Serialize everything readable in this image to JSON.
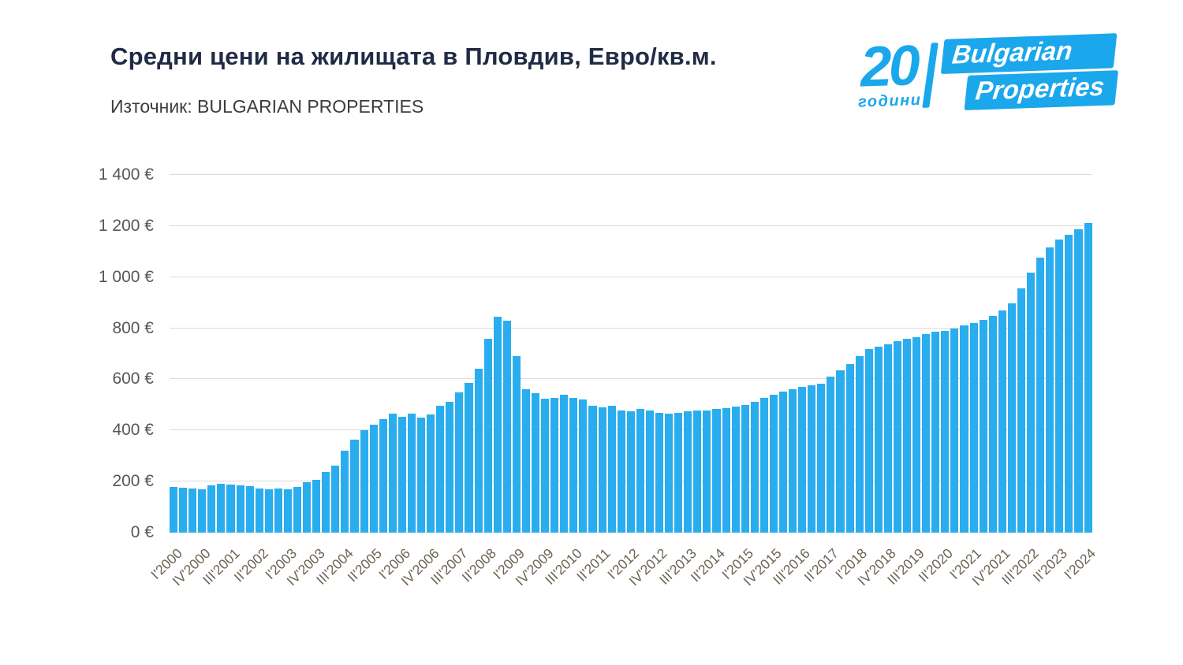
{
  "header": {
    "title": "Средни цени на жилищата в Пловдив, Евро/кв.м.",
    "source": "Източник: BULGARIAN PROPERTIES"
  },
  "logo": {
    "number": "20",
    "years": "години",
    "brand_top": "Bulgarian",
    "brand_bottom": "Properties",
    "color": "#1ba7eb"
  },
  "chart_data": {
    "type": "bar",
    "title": "Средни цени на жилищата в Пловдив, Евро/кв.м.",
    "source": "BULGARIAN PROPERTIES",
    "unit": "€/кв.м.",
    "grid": true,
    "legend": "none",
    "bar_color": "#29adef",
    "ylim": [
      0,
      1400
    ],
    "ytick_step": 200,
    "ytick_labels": [
      "0 €",
      "200 €",
      "400 €",
      "600 €",
      "800 €",
      "1 000 €",
      "1 200 €",
      "1 400 €"
    ],
    "xtick_every": 3,
    "xtick_labels_shown": [
      "I'2000",
      "IV'2000",
      "III'2001",
      "II'2002",
      "I'2003",
      "IV'2003",
      "III'2004",
      "II'2005",
      "I'2006",
      "IV'2006",
      "III'2007",
      "II'2008",
      "I'2009",
      "IV'2009",
      "III'2010",
      "II'2011",
      "I'2012",
      "IV'2012",
      "III'2013",
      "II'2014",
      "I'2015",
      "IV'2015",
      "III'2016",
      "II'2017",
      "I'2018",
      "IV'2018",
      "III'2019",
      "II'2020",
      "I'2021",
      "IV'2021",
      "III'2022",
      "II'2023",
      "I'2024"
    ],
    "categories": [
      "I'2000",
      "II'2000",
      "III'2000",
      "IV'2000",
      "I'2001",
      "II'2001",
      "III'2001",
      "IV'2001",
      "I'2002",
      "II'2002",
      "III'2002",
      "IV'2002",
      "I'2003",
      "II'2003",
      "III'2003",
      "IV'2003",
      "I'2004",
      "II'2004",
      "III'2004",
      "IV'2004",
      "I'2005",
      "II'2005",
      "III'2005",
      "IV'2005",
      "I'2006",
      "II'2006",
      "III'2006",
      "IV'2006",
      "I'2007",
      "II'2007",
      "III'2007",
      "IV'2007",
      "I'2008",
      "II'2008",
      "III'2008",
      "IV'2008",
      "I'2009",
      "II'2009",
      "III'2009",
      "IV'2009",
      "I'2010",
      "II'2010",
      "III'2010",
      "IV'2010",
      "I'2011",
      "II'2011",
      "III'2011",
      "IV'2011",
      "I'2012",
      "II'2012",
      "III'2012",
      "IV'2012",
      "I'2013",
      "II'2013",
      "III'2013",
      "IV'2013",
      "I'2014",
      "II'2014",
      "III'2014",
      "IV'2014",
      "I'2015",
      "II'2015",
      "III'2015",
      "IV'2015",
      "I'2016",
      "II'2016",
      "III'2016",
      "IV'2016",
      "I'2017",
      "II'2017",
      "III'2017",
      "IV'2017",
      "I'2018",
      "II'2018",
      "III'2018",
      "IV'2018",
      "I'2019",
      "II'2019",
      "III'2019",
      "IV'2019",
      "I'2020",
      "II'2020",
      "III'2020",
      "IV'2020",
      "I'2021",
      "II'2021",
      "III'2021",
      "IV'2021",
      "I'2022",
      "II'2022",
      "III'2022",
      "IV'2022",
      "I'2023",
      "II'2023",
      "III'2023",
      "IV'2023",
      "I'2024"
    ],
    "values": [
      180,
      176,
      172,
      170,
      186,
      190,
      187,
      185,
      182,
      172,
      170,
      172,
      170,
      180,
      196,
      207,
      237,
      262,
      320,
      365,
      400,
      422,
      443,
      466,
      452,
      465,
      451,
      463,
      495,
      512,
      548,
      585,
      640,
      760,
      846,
      830,
      690,
      560,
      545,
      525,
      528,
      540,
      528,
      520,
      498,
      490,
      497,
      478,
      474,
      484,
      479,
      468,
      466,
      470,
      476,
      477,
      479,
      483,
      488,
      494,
      500,
      512,
      526,
      540,
      553,
      562,
      571,
      577,
      582,
      610,
      636,
      660,
      690,
      718,
      727,
      738,
      750,
      760,
      766,
      776,
      786,
      788,
      798,
      810,
      820,
      833,
      848,
      870,
      898,
      956,
      1018,
      1076,
      1116,
      1146,
      1166,
      1186,
      1212
    ]
  }
}
